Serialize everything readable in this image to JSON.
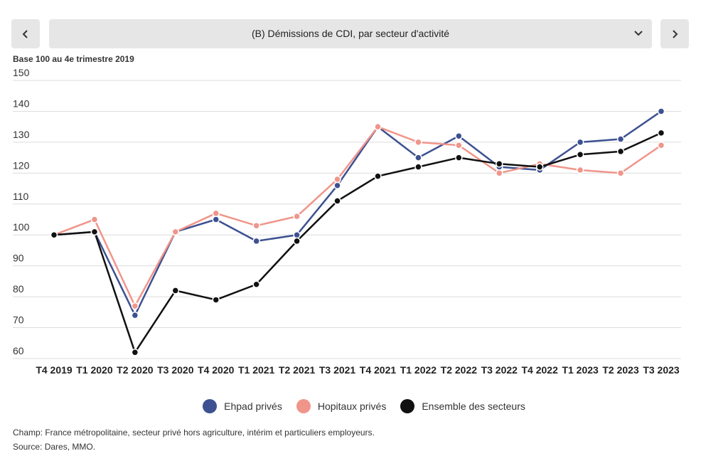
{
  "nav": {
    "prev_icon": "chevron-left-icon",
    "next_icon": "chevron-right-icon",
    "selector_label": "(B) Démissions de CDI, par secteur d'activité",
    "selector_icon": "chevron-down-icon"
  },
  "unit_label": "Base 100 au 4e trimestre 2019",
  "chart_data": {
    "type": "line",
    "title": "",
    "xlabel": "",
    "ylabel": "Base 100 au 4e trimestre 2019",
    "ylim": [
      60,
      150
    ],
    "yticks": [
      60,
      70,
      80,
      90,
      100,
      110,
      120,
      130,
      140,
      150
    ],
    "categories": [
      "T4 2019",
      "T1 2020",
      "T2 2020",
      "T3 2020",
      "T4 2020",
      "T1 2021",
      "T2 2021",
      "T3 2021",
      "T4 2021",
      "T1 2022",
      "T2 2022",
      "T3 2022",
      "T4 2022",
      "T1 2023",
      "T2 2023",
      "T3 2023"
    ],
    "grid": true,
    "legend_position": "bottom-center",
    "series": [
      {
        "name": "Ehpad privés",
        "color": "#3d5191",
        "values": [
          100,
          101,
          74,
          101,
          105,
          98,
          100,
          116,
          135,
          125,
          132,
          122,
          121,
          130,
          131,
          140
        ]
      },
      {
        "name": "Hopitaux privés",
        "color": "#f0958a",
        "values": [
          100,
          105,
          77,
          101,
          107,
          103,
          106,
          118,
          135,
          130,
          129,
          120,
          123,
          121,
          120,
          129
        ]
      },
      {
        "name": "Ensemble des secteurs",
        "color": "#111111",
        "values": [
          100,
          101,
          62,
          82,
          79,
          84,
          98,
          111,
          119,
          122,
          125,
          123,
          122,
          126,
          127,
          133
        ]
      }
    ]
  },
  "footnote": {
    "champ": "Champ: France métropolitaine, secteur privé hors agriculture, intérim et  particuliers employeurs.",
    "source": "Source: Dares, MMO."
  }
}
